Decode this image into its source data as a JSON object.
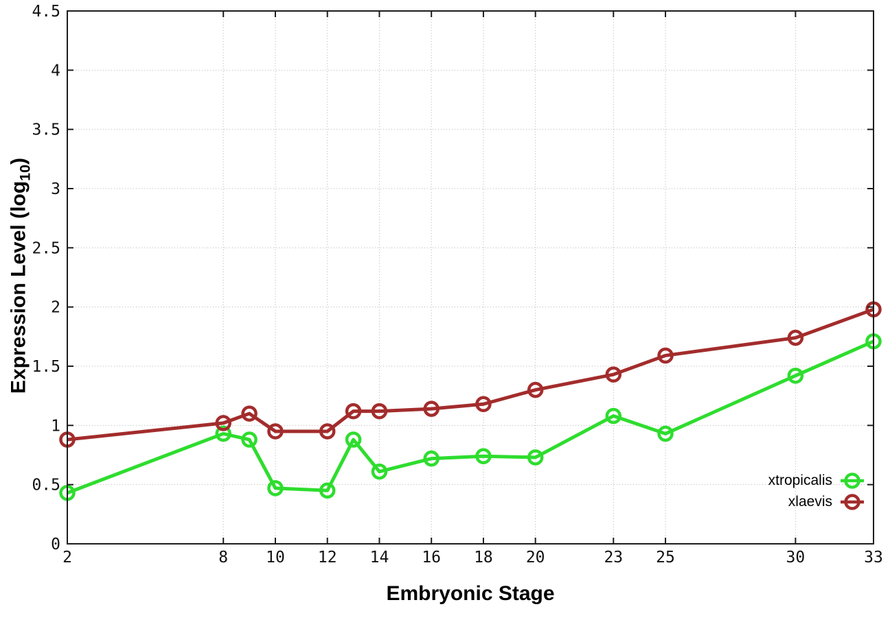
{
  "chart_data": {
    "type": "line",
    "title": "",
    "xlabel": "Embryonic Stage",
    "ylabel": "Expression Level (log10)",
    "ylabel_parts": {
      "pre": "Expression Level (log",
      "sub": "10",
      "post": ")"
    },
    "xlim": [
      2,
      33
    ],
    "ylim": [
      0,
      4.5
    ],
    "grid": true,
    "legend_position": "inside-right-bottom",
    "x_ticks": [
      2,
      8,
      10,
      12,
      14,
      16,
      18,
      20,
      23,
      25,
      30,
      33
    ],
    "x_tick_labels": [
      "2",
      "8",
      "10",
      "12",
      "14",
      "16",
      "18",
      "20",
      "23",
      "25",
      "30",
      "33"
    ],
    "y_ticks": [
      0,
      0.5,
      1,
      1.5,
      2,
      2.5,
      3,
      3.5,
      4,
      4.5
    ],
    "y_tick_labels": [
      "0",
      "0.5",
      "1",
      "1.5",
      "2",
      "2.5",
      "3",
      "3.5",
      "4",
      "4.5"
    ],
    "x": [
      2,
      8,
      9,
      10,
      12,
      13,
      14,
      16,
      18,
      20,
      23,
      25,
      30,
      33
    ],
    "series": [
      {
        "name": "xtropicalis",
        "color": "#2edd2e",
        "values": [
          0.43,
          0.93,
          0.88,
          0.47,
          0.45,
          0.88,
          0.61,
          0.72,
          0.74,
          0.73,
          1.08,
          0.93,
          1.42,
          1.71
        ]
      },
      {
        "name": "xlaevis",
        "color": "#a32c2c",
        "values": [
          0.88,
          1.02,
          1.1,
          0.95,
          0.95,
          1.12,
          1.12,
          1.14,
          1.18,
          1.3,
          1.43,
          1.59,
          1.74,
          1.98
        ]
      }
    ],
    "style_colors": {
      "grid": "#b5b5b5",
      "axis": "#1c1c1c",
      "tick_text": "#111111"
    }
  }
}
